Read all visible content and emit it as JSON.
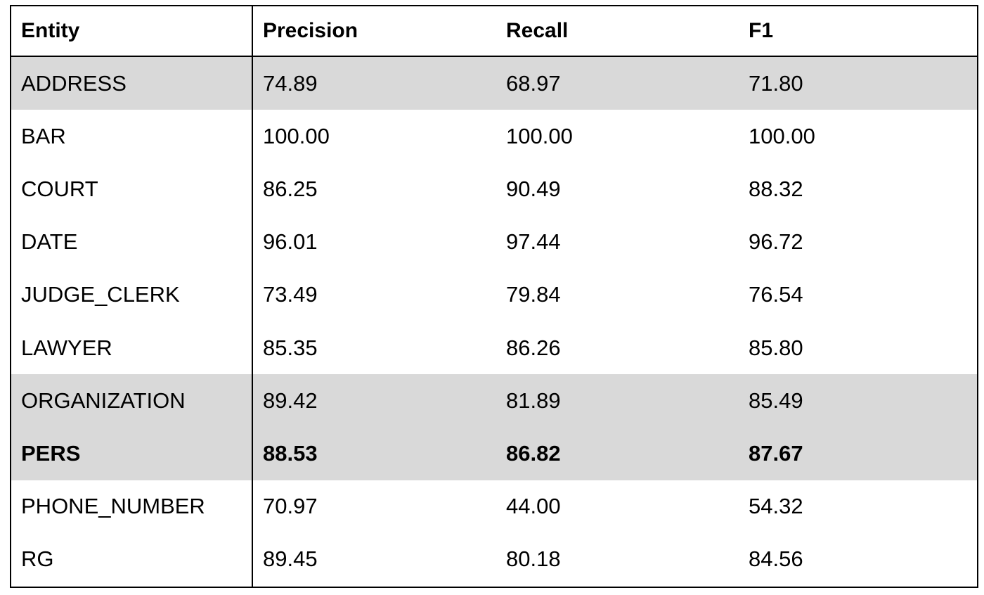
{
  "table": {
    "headers": [
      "Entity",
      "Precision",
      "Recall",
      "F1"
    ],
    "rows": [
      {
        "entity": "ADDRESS",
        "precision": "74.89",
        "recall": "68.97",
        "f1": "71.80",
        "shaded": true,
        "bold": false
      },
      {
        "entity": "BAR",
        "precision": "100.00",
        "recall": "100.00",
        "f1": "100.00",
        "shaded": false,
        "bold": false
      },
      {
        "entity": "COURT",
        "precision": "86.25",
        "recall": "90.49",
        "f1": "88.32",
        "shaded": false,
        "bold": false
      },
      {
        "entity": "DATE",
        "precision": "96.01",
        "recall": "97.44",
        "f1": "96.72",
        "shaded": false,
        "bold": false
      },
      {
        "entity": "JUDGE_CLERK",
        "precision": "73.49",
        "recall": "79.84",
        "f1": "76.54",
        "shaded": false,
        "bold": false
      },
      {
        "entity": "LAWYER",
        "precision": "85.35",
        "recall": "86.26",
        "f1": "85.80",
        "shaded": false,
        "bold": false
      },
      {
        "entity": "ORGANIZATION",
        "precision": "89.42",
        "recall": "81.89",
        "f1": "85.49",
        "shaded": true,
        "bold": false
      },
      {
        "entity": "PERS",
        "precision": "88.53",
        "recall": "86.82",
        "f1": "87.67",
        "shaded": true,
        "bold": true
      },
      {
        "entity": "PHONE_NUMBER",
        "precision": "70.97",
        "recall": "44.00",
        "f1": "54.32",
        "shaded": false,
        "bold": false
      },
      {
        "entity": "RG",
        "precision": "89.45",
        "recall": "80.18",
        "f1": "84.56",
        "shaded": false,
        "bold": false
      }
    ]
  },
  "colors": {
    "shaded_row": "#d9d9d9",
    "border": "#000000",
    "text": "#000000"
  }
}
